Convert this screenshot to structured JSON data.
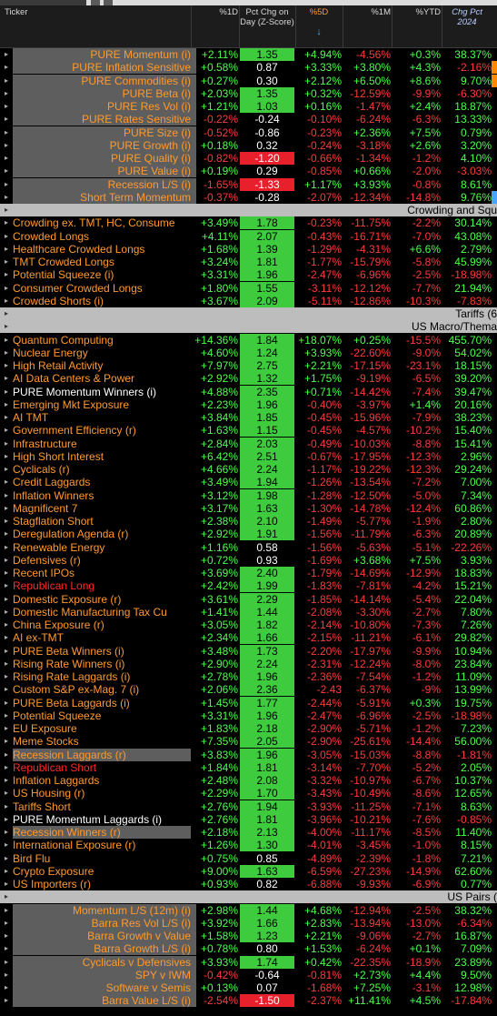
{
  "header": {
    "ticker": "Ticker",
    "d1": "%1D",
    "z": "Pct Chg on Day (Z-Score)",
    "d5": "%5D",
    "m1": "%1M",
    "ytd": "%YTD",
    "chg2024": "Chg Pct 2024",
    "sort_icon": "sort-down-arrow"
  },
  "colors": {
    "positive": "#4cff4c",
    "negative": "#ff3a3a",
    "z_high": "#3ecb3e",
    "z_low": "#e8202b",
    "group_bg": "#bdbdbd",
    "name_orange": "#ff9a2e"
  },
  "rows": [
    {
      "type": "row",
      "name": "PURE Momentum (i)",
      "nc": "o",
      "ind": 1,
      "grey": 1,
      "d1": "+2.11%",
      "z": "1.35",
      "zt": "p",
      "d5": "+4.94%",
      "m1": "-4.56%",
      "ytd": "+0.3%",
      "chg": "38.37%"
    },
    {
      "type": "row",
      "name": "PURE Inflation Sensitive",
      "nc": "o",
      "ind": 1,
      "grey": 1,
      "d1": "+0.58%",
      "z": "0.87",
      "zt": "m",
      "d5": "+3.33%",
      "m1": "+3.80%",
      "ytd": "+4.3%",
      "chg": "-2.16%",
      "bar": "#ff8800"
    },
    {
      "type": "row",
      "name": "PURE Commodities (i)",
      "nc": "o",
      "ind": 1,
      "grey": 1,
      "d1": "+0.27%",
      "z": "0.30",
      "zt": "m",
      "d5": "+2.12%",
      "m1": "+6.50%",
      "ytd": "+8.6%",
      "chg": "9.70%",
      "bar": "#ff8800"
    },
    {
      "type": "row",
      "name": "PURE Beta (i)",
      "nc": "o",
      "ind": 1,
      "grey": 1,
      "d1": "+2.03%",
      "z": "1.35",
      "zt": "p",
      "d5": "+0.32%",
      "m1": "-12.59%",
      "ytd": "-9.9%",
      "chg": "-6.30%"
    },
    {
      "type": "row",
      "name": "PURE Res Vol (i)",
      "nc": "o",
      "ind": 1,
      "grey": 1,
      "d1": "+1.21%",
      "z": "1.03",
      "zt": "p",
      "d5": "+0.16%",
      "m1": "-1.47%",
      "ytd": "+2.4%",
      "chg": "18.87%"
    },
    {
      "type": "row",
      "name": "PURE Rates Sensitive",
      "nc": "o",
      "ind": 1,
      "grey": 1,
      "d1": "-0.22%",
      "z": "-0.24",
      "zt": "m",
      "d5": "-0.10%",
      "m1": "-6.24%",
      "ytd": "-6.3%",
      "chg": "13.33%"
    },
    {
      "type": "row",
      "name": "PURE Size (i)",
      "nc": "o",
      "ind": 1,
      "grey": 1,
      "d1": "-0.52%",
      "z": "-0.86",
      "zt": "m",
      "d5": "-0.23%",
      "m1": "+2.36%",
      "ytd": "+7.5%",
      "chg": "0.79%"
    },
    {
      "type": "row",
      "name": "PURE Growth (i)",
      "nc": "o",
      "ind": 1,
      "grey": 1,
      "d1": "+0.18%",
      "z": "0.32",
      "zt": "m",
      "d5": "-0.24%",
      "m1": "-3.18%",
      "ytd": "+2.6%",
      "chg": "3.20%"
    },
    {
      "type": "row",
      "name": "PURE Quality (i)",
      "nc": "o",
      "ind": 1,
      "grey": 1,
      "d1": "-0.82%",
      "z": "-1.20",
      "zt": "n",
      "d5": "-0.66%",
      "m1": "-1.34%",
      "ytd": "-1.2%",
      "chg": "4.10%"
    },
    {
      "type": "row",
      "name": "PURE Value (i)",
      "nc": "o",
      "ind": 1,
      "grey": 1,
      "d1": "+0.19%",
      "z": "0.29",
      "zt": "m",
      "d5": "-0.85%",
      "m1": "+0.66%",
      "ytd": "-2.0%",
      "chg": "-3.03%"
    },
    {
      "type": "row",
      "name": "Recession L/S (i)",
      "nc": "o",
      "ind": 1,
      "grey": 1,
      "d1": "-1.65%",
      "z": "-1.33",
      "zt": "n",
      "d5": "+1.17%",
      "m1": "+3.93%",
      "ytd": "-0.8%",
      "chg": "8.61%"
    },
    {
      "type": "row",
      "name": "Short Term Momentum",
      "nc": "o",
      "ind": 1,
      "grey": 1,
      "d1": "-0.37%",
      "z": "-0.28",
      "zt": "m",
      "d5": "-2.07%",
      "m1": "-12.34%",
      "ytd": "-14.8%",
      "chg": "9.76%",
      "bar": "#4aa3ff"
    },
    {
      "type": "group",
      "title": "Crowding and Squ"
    },
    {
      "type": "row",
      "name": "Crowding ex. TMT, HC, Consume",
      "nc": "o",
      "d1": "+3.49%",
      "z": "1.78",
      "zt": "p",
      "d5": "-0.23%",
      "m1": "-11.75%",
      "ytd": "-2.2%",
      "chg": "30.14%"
    },
    {
      "type": "row",
      "name": "Crowded Longs",
      "nc": "o",
      "d1": "+4.11%",
      "z": "2.07",
      "zt": "p",
      "d5": "-0.43%",
      "m1": "-16.71%",
      "ytd": "-7.0%",
      "chg": "43.08%"
    },
    {
      "type": "row",
      "name": "Healthcare Crowded Longs",
      "nc": "o",
      "d1": "+1.68%",
      "z": "1.39",
      "zt": "p",
      "d5": "-1.29%",
      "m1": "-4.31%",
      "ytd": "+6.6%",
      "chg": "2.79%"
    },
    {
      "type": "row",
      "name": "TMT Crowded Longs",
      "nc": "o",
      "d1": "+3.24%",
      "z": "1.81",
      "zt": "p",
      "d5": "-1.77%",
      "m1": "-15.79%",
      "ytd": "-5.8%",
      "chg": "45.99%"
    },
    {
      "type": "row",
      "name": "Potential Squeeze (i)",
      "nc": "o",
      "d1": "+3.31%",
      "z": "1.96",
      "zt": "p",
      "d5": "-2.47%",
      "m1": "-6.96%",
      "ytd": "-2.5%",
      "chg": "-18.98%"
    },
    {
      "type": "row",
      "name": "Consumer Crowded Longs",
      "nc": "o",
      "d1": "+1.80%",
      "z": "1.55",
      "zt": "p",
      "d5": "-3.11%",
      "m1": "-12.12%",
      "ytd": "-7.7%",
      "chg": "21.94%"
    },
    {
      "type": "row",
      "name": "Crowded Shorts (i)",
      "nc": "o",
      "d1": "+3.67%",
      "z": "2.09",
      "zt": "p",
      "d5": "-5.11%",
      "m1": "-12.86%",
      "ytd": "-10.3%",
      "chg": "-7.83%"
    },
    {
      "type": "group",
      "title": "Tariffs (6"
    },
    {
      "type": "group",
      "title": "US Macro/Thema"
    },
    {
      "type": "row",
      "name": "Quantum Computing",
      "nc": "o",
      "d1": "+14.36%",
      "z": "1.84",
      "zt": "p",
      "d5": "+18.07%",
      "m1": "+0.25%",
      "ytd": "-15.5%",
      "chg": "455.70%"
    },
    {
      "type": "row",
      "name": "Nuclear Energy",
      "nc": "o",
      "d1": "+4.60%",
      "z": "1.24",
      "zt": "p",
      "d5": "+3.93%",
      "m1": "-22.60%",
      "ytd": "-9.0%",
      "chg": "54.02%"
    },
    {
      "type": "row",
      "name": "High Retail Activity",
      "nc": "o",
      "d1": "+7.97%",
      "z": "2.75",
      "zt": "p",
      "d5": "+2.21%",
      "m1": "-17.15%",
      "ytd": "-23.1%",
      "chg": "18.15%"
    },
    {
      "type": "row",
      "name": "AI Data Centers & Power",
      "nc": "o",
      "d1": "+2.92%",
      "z": "1.32",
      "zt": "p",
      "d5": "+1.75%",
      "m1": "-9.19%",
      "ytd": "-6.5%",
      "chg": "39.20%"
    },
    {
      "type": "row",
      "name": "PURE Momentum Winners (i)",
      "nc": "w",
      "d1": "+4.88%",
      "z": "2.35",
      "zt": "p",
      "d5": "+0.71%",
      "m1": "-14.42%",
      "ytd": "-7.4%",
      "chg": "39.47%"
    },
    {
      "type": "row",
      "name": "Emerging Mkt Exposure",
      "nc": "o",
      "d1": "+2.23%",
      "z": "1.96",
      "zt": "p",
      "d5": "-0.40%",
      "m1": "-3.97%",
      "ytd": "+1.4%",
      "chg": "20.16%"
    },
    {
      "type": "row",
      "name": "AI TMT",
      "nc": "o",
      "d1": "+3.84%",
      "z": "1.85",
      "zt": "p",
      "d5": "-0.45%",
      "m1": "-15.96%",
      "ytd": "-7.9%",
      "chg": "38.23%"
    },
    {
      "type": "row",
      "name": "Government Efficiency (r)",
      "nc": "o",
      "d1": "+1.63%",
      "z": "1.15",
      "zt": "p",
      "d5": "-0.45%",
      "m1": "-4.57%",
      "ytd": "-10.2%",
      "chg": "15.40%"
    },
    {
      "type": "row",
      "name": "Infrastructure",
      "nc": "o",
      "d1": "+2.84%",
      "z": "2.03",
      "zt": "p",
      "d5": "-0.49%",
      "m1": "-10.03%",
      "ytd": "-8.8%",
      "chg": "15.41%"
    },
    {
      "type": "row",
      "name": "High Short Interest",
      "nc": "o",
      "d1": "+6.42%",
      "z": "2.51",
      "zt": "p",
      "d5": "-0.67%",
      "m1": "-17.95%",
      "ytd": "-12.3%",
      "chg": "2.96%"
    },
    {
      "type": "row",
      "name": "Cyclicals (r)",
      "nc": "o",
      "d1": "+4.66%",
      "z": "2.24",
      "zt": "p",
      "d5": "-1.17%",
      "m1": "-19.22%",
      "ytd": "-12.3%",
      "chg": "29.24%"
    },
    {
      "type": "row",
      "name": "Credit Laggards",
      "nc": "o",
      "d1": "+3.49%",
      "z": "1.94",
      "zt": "p",
      "d5": "-1.26%",
      "m1": "-13.54%",
      "ytd": "-7.2%",
      "chg": "7.00%"
    },
    {
      "type": "row",
      "name": "Inflation Winners",
      "nc": "o",
      "d1": "+3.12%",
      "z": "1.98",
      "zt": "p",
      "d5": "-1.28%",
      "m1": "-12.50%",
      "ytd": "-5.0%",
      "chg": "7.34%"
    },
    {
      "type": "row",
      "name": "Magnificent 7",
      "nc": "o",
      "d1": "+3.17%",
      "z": "1.63",
      "zt": "p",
      "d5": "-1.30%",
      "m1": "-14.78%",
      "ytd": "-12.4%",
      "chg": "60.86%"
    },
    {
      "type": "row",
      "name": "Stagflation Short",
      "nc": "o",
      "d1": "+2.38%",
      "z": "2.10",
      "zt": "p",
      "d5": "-1.49%",
      "m1": "-5.77%",
      "ytd": "-1.9%",
      "chg": "2.80%"
    },
    {
      "type": "row",
      "name": "Deregulation Agenda (r)",
      "nc": "o",
      "d1": "+2.92%",
      "z": "1.91",
      "zt": "p",
      "d5": "-1.56%",
      "m1": "-11.79%",
      "ytd": "-6.3%",
      "chg": "20.89%"
    },
    {
      "type": "row",
      "name": "Renewable Energy",
      "nc": "o",
      "d1": "+1.16%",
      "z": "0.58",
      "zt": "m",
      "d5": "-1.56%",
      "m1": "-5.63%",
      "ytd": "-5.1%",
      "chg": "-22.26%"
    },
    {
      "type": "row",
      "name": "Defensives (r)",
      "nc": "o",
      "d1": "+0.72%",
      "z": "0.93",
      "zt": "m",
      "d5": "-1.69%",
      "m1": "+3.68%",
      "ytd": "+7.5%",
      "chg": "3.93%"
    },
    {
      "type": "row",
      "name": "Recent IPOs",
      "nc": "o",
      "d1": "+3.69%",
      "z": "2.40",
      "zt": "p",
      "d5": "-1.79%",
      "m1": "-14.69%",
      "ytd": "-12.9%",
      "chg": "18.83%"
    },
    {
      "type": "row",
      "name": "Republican Long",
      "nc": "r",
      "d1": "+2.42%",
      "z": "1.99",
      "zt": "p",
      "d5": "-1.83%",
      "m1": "-7.81%",
      "ytd": "-4.2%",
      "chg": "15.21%"
    },
    {
      "type": "row",
      "name": "Domestic Exposure (r)",
      "nc": "o",
      "d1": "+3.61%",
      "z": "2.29",
      "zt": "p",
      "d5": "-1.85%",
      "m1": "-14.14%",
      "ytd": "-5.4%",
      "chg": "22.04%"
    },
    {
      "type": "row",
      "name": "Domestic Manufacturing Tax Cu",
      "nc": "o",
      "d1": "+1.41%",
      "z": "1.44",
      "zt": "p",
      "d5": "-2.08%",
      "m1": "-3.30%",
      "ytd": "-2.7%",
      "chg": "7.80%"
    },
    {
      "type": "row",
      "name": "China Exposure (r)",
      "nc": "o",
      "d1": "+3.05%",
      "z": "1.82",
      "zt": "p",
      "d5": "-2.14%",
      "m1": "-10.80%",
      "ytd": "-7.3%",
      "chg": "7.26%"
    },
    {
      "type": "row",
      "name": "AI ex-TMT",
      "nc": "o",
      "d1": "+2.34%",
      "z": "1.66",
      "zt": "p",
      "d5": "-2.15%",
      "m1": "-11.21%",
      "ytd": "-6.1%",
      "chg": "29.82%"
    },
    {
      "type": "row",
      "name": "PURE Beta Winners (i)",
      "nc": "o",
      "d1": "+3.48%",
      "z": "1.73",
      "zt": "p",
      "d5": "-2.20%",
      "m1": "-17.97%",
      "ytd": "-9.9%",
      "chg": "10.94%"
    },
    {
      "type": "row",
      "name": "Rising Rate Winners (i)",
      "nc": "o",
      "d1": "+2.90%",
      "z": "2.24",
      "zt": "p",
      "d5": "-2.31%",
      "m1": "-12.24%",
      "ytd": "-8.0%",
      "chg": "23.84%"
    },
    {
      "type": "row",
      "name": "Rising Rate Laggards (i)",
      "nc": "o",
      "d1": "+2.78%",
      "z": "1.96",
      "zt": "p",
      "d5": "-2.36%",
      "m1": "-7.54%",
      "ytd": "-1.2%",
      "chg": "11.09%"
    },
    {
      "type": "row",
      "name": "Custom S&P ex-Mag. 7 (i)",
      "nc": "o",
      "d1": "+2.06%",
      "z": "2.36",
      "zt": "p",
      "d5": "-2.43",
      "m1": "-6.37%",
      "ytd": "-9%",
      "chg": "13.99%"
    },
    {
      "type": "row",
      "name": "PURE Beta Laggards (i)",
      "nc": "o",
      "d1": "+1.45%",
      "z": "1.77",
      "zt": "p",
      "d5": "-2.44%",
      "m1": "-5.91%",
      "ytd": "+0.3%",
      "chg": "19.75%"
    },
    {
      "type": "row",
      "name": "Potential Squeeze",
      "nc": "o",
      "d1": "+3.31%",
      "z": "1.96",
      "zt": "p",
      "d5": "-2.47%",
      "m1": "-6.96%",
      "ytd": "-2.5%",
      "chg": "-18.98%"
    },
    {
      "type": "row",
      "name": "EU Exposure",
      "nc": "o",
      "d1": "+1.83%",
      "z": "2.18",
      "zt": "p",
      "d5": "-2.90%",
      "m1": "-5.71%",
      "ytd": "-1.2%",
      "chg": "7.23%"
    },
    {
      "type": "row",
      "name": "Meme Stocks",
      "nc": "o",
      "d1": "+7.35%",
      "z": "2.05",
      "zt": "p",
      "d5": "-2.90%",
      "m1": "-25.61%",
      "ytd": "-14.4%",
      "chg": "56.00%"
    },
    {
      "type": "row",
      "name": "Recession Laggards (r)",
      "nc": "o",
      "grey": 1,
      "d1": "+3.83%",
      "z": "1.96",
      "zt": "p",
      "d5": "-3.05%",
      "m1": "-15.03%",
      "ytd": "-8.8%",
      "chg": "-1.81%"
    },
    {
      "type": "row",
      "name": "Republican Short",
      "nc": "r",
      "d1": "+1.84%",
      "z": "1.81",
      "zt": "p",
      "d5": "-3.14%",
      "m1": "-7.70%",
      "ytd": "-5.2%",
      "chg": "2.05%"
    },
    {
      "type": "row",
      "name": "Inflation Laggards",
      "nc": "o",
      "d1": "+2.48%",
      "z": "2.08",
      "zt": "p",
      "d5": "-3.32%",
      "m1": "-10.97%",
      "ytd": "-6.7%",
      "chg": "10.37%"
    },
    {
      "type": "row",
      "name": "US Housing (r)",
      "nc": "o",
      "d1": "+2.29%",
      "z": "1.70",
      "zt": "p",
      "d5": "-3.43%",
      "m1": "-10.49%",
      "ytd": "-8.6%",
      "chg": "12.65%"
    },
    {
      "type": "row",
      "name": "Tariffs Short",
      "nc": "o",
      "d1": "+2.76%",
      "z": "1.94",
      "zt": "p",
      "d5": "-3.93%",
      "m1": "-11.25%",
      "ytd": "-7.1%",
      "chg": "8.63%"
    },
    {
      "type": "row",
      "name": "PURE Momentum Laggards (i)",
      "nc": "w",
      "d1": "+2.76%",
      "z": "1.81",
      "zt": "p",
      "d5": "-3.96%",
      "m1": "-10.21%",
      "ytd": "-7.6%",
      "chg": "-0.85%"
    },
    {
      "type": "row",
      "name": "Recession Winners (r)",
      "nc": "o",
      "grey": 1,
      "d1": "+2.18%",
      "z": "2.13",
      "zt": "p",
      "d5": "-4.00%",
      "m1": "-11.17%",
      "ytd": "-8.5%",
      "chg": "11.40%"
    },
    {
      "type": "row",
      "name": "International Exposure (r)",
      "nc": "o",
      "d1": "+1.26%",
      "z": "1.30",
      "zt": "p",
      "d5": "-4.01%",
      "m1": "-3.45%",
      "ytd": "-1.0%",
      "chg": "8.15%"
    },
    {
      "type": "row",
      "name": "Bird Flu",
      "nc": "o",
      "d1": "+0.75%",
      "z": "0.85",
      "zt": "m",
      "d5": "-4.89%",
      "m1": "-2.39%",
      "ytd": "-1.8%",
      "chg": "7.21%"
    },
    {
      "type": "row",
      "name": "Crypto Exposure",
      "nc": "o",
      "d1": "+9.00%",
      "z": "1.63",
      "zt": "p",
      "d5": "-6.59%",
      "m1": "-27.23%",
      "ytd": "-14.9%",
      "chg": "62.60%"
    },
    {
      "type": "row",
      "name": "US Importers (r)",
      "nc": "o",
      "d1": "+0.93%",
      "z": "0.82",
      "zt": "m",
      "d5": "-6.88%",
      "m1": "-9.93%",
      "ytd": "-6.9%",
      "chg": "0.77%"
    },
    {
      "type": "group",
      "title": "US Pairs ("
    },
    {
      "type": "row",
      "name": "Momentum L/S (12m) (i)",
      "nc": "o",
      "ind": 1,
      "grey": 1,
      "d1": "+2.98%",
      "z": "1.44",
      "zt": "p",
      "d5": "+4.68%",
      "m1": "-12.94%",
      "ytd": "-2.5%",
      "chg": "38.32%"
    },
    {
      "type": "row",
      "name": "Barra Res Vol L/S (i)",
      "nc": "o",
      "ind": 1,
      "grey": 1,
      "d1": "+3.92%",
      "z": "1.66",
      "zt": "p",
      "d5": "+2.83%",
      "m1": "-13.94%",
      "ytd": "-13.0%",
      "chg": "-6.34%"
    },
    {
      "type": "row",
      "name": "Barra Growth v Value",
      "nc": "o",
      "ind": 1,
      "grey": 1,
      "d1": "+1.58%",
      "z": "1.23",
      "zt": "p",
      "d5": "+2.21%",
      "m1": "-9.06%",
      "ytd": "-2.7%",
      "chg": "16.87%"
    },
    {
      "type": "row",
      "name": "Barra Growth L/S (i)",
      "nc": "o",
      "ind": 1,
      "grey": 1,
      "d1": "+0.78%",
      "z": "0.80",
      "zt": "m",
      "d5": "+1.53%",
      "m1": "-6.24%",
      "ytd": "+0.1%",
      "chg": "7.09%"
    },
    {
      "type": "row",
      "name": "Cyclicals v Defensives",
      "nc": "o",
      "ind": 1,
      "grey": 1,
      "d1": "+3.93%",
      "z": "1.74",
      "zt": "p",
      "d5": "+0.42%",
      "m1": "-22.35%",
      "ytd": "-18.9%",
      "chg": "23.89%"
    },
    {
      "type": "row",
      "name": "SPY v IWM",
      "nc": "o",
      "ind": 1,
      "grey": 1,
      "d1": "-0.42%",
      "z": "-0.64",
      "zt": "m",
      "d5": "-0.81%",
      "m1": "+2.73%",
      "ytd": "+4.4%",
      "chg": "9.50%"
    },
    {
      "type": "row",
      "name": "Software v Semis",
      "nc": "o",
      "ind": 1,
      "grey": 1,
      "d1": "+0.13%",
      "z": "0.07",
      "zt": "m",
      "d5": "-1.68%",
      "m1": "+7.25%",
      "ytd": "-3.1%",
      "chg": "12.98%"
    },
    {
      "type": "row",
      "name": "Barra Value L/S (i)",
      "nc": "o",
      "ind": 1,
      "grey": 1,
      "d1": "-2.54%",
      "z": "-1.50",
      "zt": "n",
      "d5": "-2.37%",
      "m1": "+11.41%",
      "ytd": "+4.5%",
      "chg": "-17.84%"
    }
  ]
}
